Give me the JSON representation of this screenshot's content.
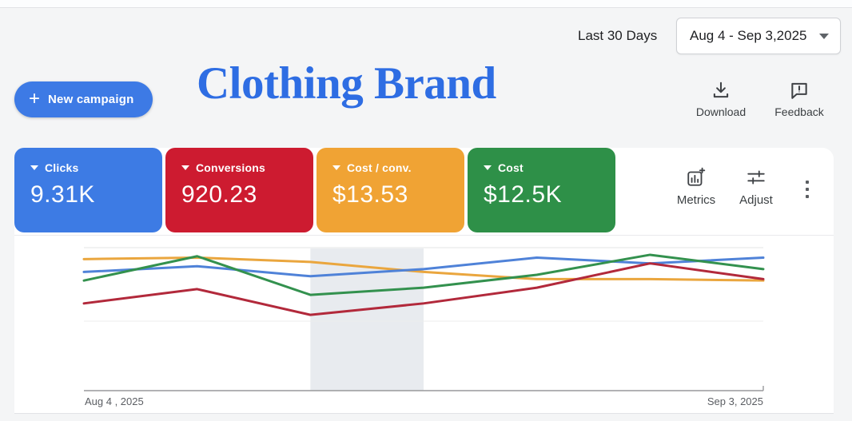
{
  "header": {
    "last_range_label": "Last 30 Days",
    "date_range": "Aug 4 - Sep 3,2025",
    "new_campaign_label": "New campaign",
    "title": "Clothing Brand",
    "download_label": "Download",
    "feedback_label": "Feedback"
  },
  "scorecards": [
    {
      "label": "Clicks",
      "value": "9.31K",
      "color": "#3d7be4"
    },
    {
      "label": "Conversions",
      "value": "920.23",
      "color": "#cd1b30"
    },
    {
      "label": "Cost / conv.",
      "value": "$13.53",
      "color": "#f0a334"
    },
    {
      "label": "Cost",
      "value": "$12.5K",
      "color": "#2e9048"
    }
  ],
  "toolbar": {
    "metrics_label": "Metrics",
    "adjust_label": "Adjust",
    "kebab_icon": "more-options"
  },
  "chart_data": {
    "type": "line",
    "x_start_label": "Aug 4  , 2025",
    "x_end_label": "Sep 3, 2025",
    "x_points": 7,
    "ylim": [
      0,
      100
    ],
    "grid": true,
    "legend": "none",
    "highlight_band_x": [
      2,
      3
    ],
    "highlight_color": "#e8ebef",
    "series": [
      {
        "name": "Clicks",
        "color": "#4f82d8",
        "values": [
          83,
          87,
          80,
          85,
          93,
          89,
          93
        ]
      },
      {
        "name": "Conversions",
        "color": "#b2293b",
        "values": [
          61,
          71,
          53,
          61,
          72,
          89,
          78
        ]
      },
      {
        "name": "Cost / conv.",
        "color": "#eaa63e",
        "values": [
          92,
          93,
          90,
          83,
          78,
          78,
          77
        ]
      },
      {
        "name": "Cost",
        "color": "#33914e",
        "values": [
          77,
          94,
          67,
          72,
          81,
          95,
          85
        ]
      }
    ]
  }
}
